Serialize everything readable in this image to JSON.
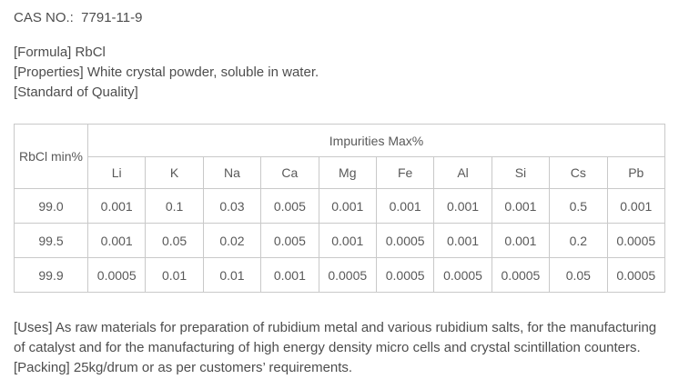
{
  "page": {
    "cas_line": "CAS NO.:  7791-11-9",
    "formula_line": "[Formula] RbCl",
    "properties_line": "[Properties] White crystal powder, soluble in water.",
    "standard_line": "[Standard of Quality]",
    "uses_line": "[Uses] As raw materials for preparation of rubidium metal and various rubidium salts, for the manufacturing of catalyst and for the manufacturing of high energy density micro cells and crystal scintillation counters.",
    "packing_line": "[Packing] 25kg/drum or as per customers’ requirements."
  },
  "table": {
    "corner_header": "RbCl min%",
    "impurities_header": "Impurities Max%",
    "element_headers": [
      "Li",
      "K",
      "Na",
      "Ca",
      "Mg",
      "Fe",
      "Al",
      "Si",
      "Cs",
      "Pb"
    ],
    "rows": [
      {
        "rbcl": "99.0",
        "values": [
          "0.001",
          "0.1",
          "0.03",
          "0.005",
          "0.001",
          "0.001",
          "0.001",
          "0.001",
          "0.5",
          "0.001"
        ]
      },
      {
        "rbcl": "99.5",
        "values": [
          "0.001",
          "0.05",
          "0.02",
          "0.005",
          "0.001",
          "0.0005",
          "0.001",
          "0.001",
          "0.2",
          "0.0005"
        ]
      },
      {
        "rbcl": "99.9",
        "values": [
          "0.0005",
          "0.01",
          "0.01",
          "0.001",
          "0.0005",
          "0.0005",
          "0.0005",
          "0.0005",
          "0.05",
          "0.0005"
        ]
      }
    ]
  },
  "colors": {
    "text": "#4d4d4d",
    "table_text": "#595959",
    "table_border": "#c9c9c9",
    "background": "#ffffff"
  }
}
